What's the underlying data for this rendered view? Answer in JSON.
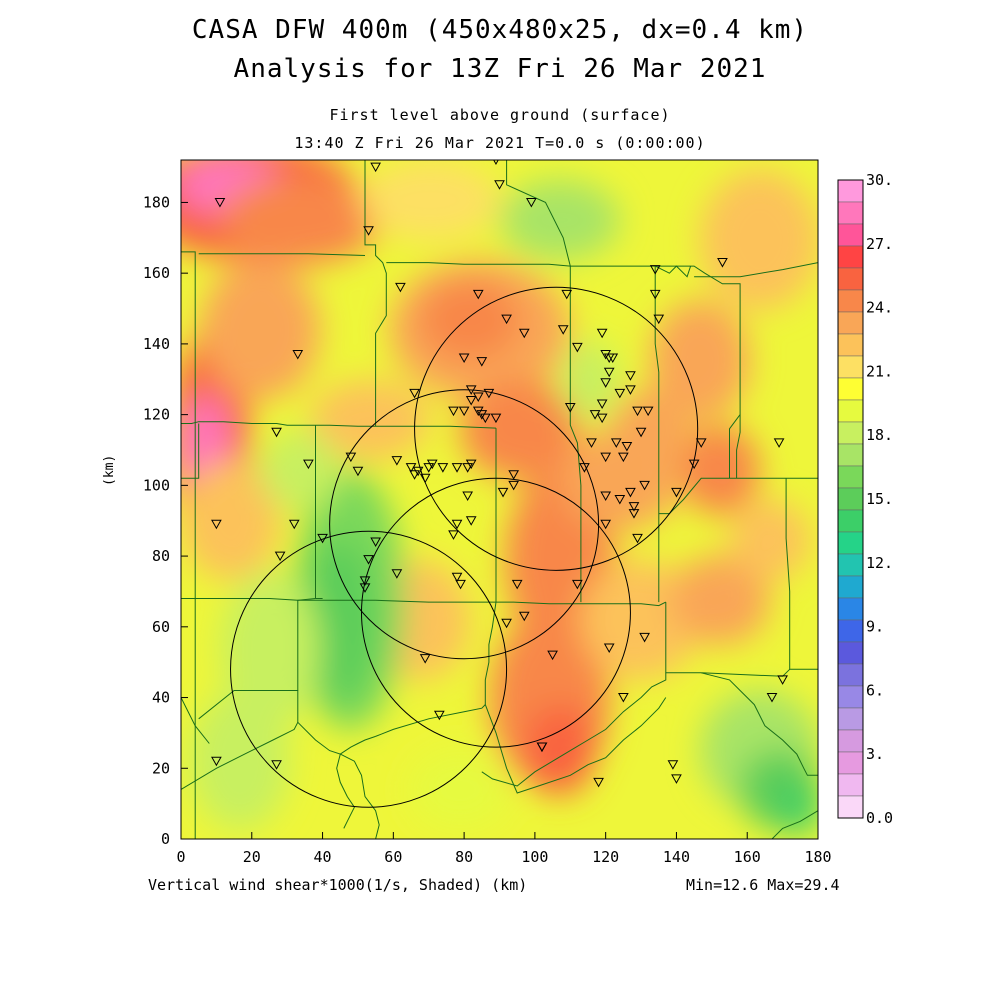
{
  "titles": {
    "line1": "CASA DFW 400m (450x480x25, dx=0.4 km)",
    "line2": "Analysis for 13Z Fri 26 Mar 2021",
    "level": "First level above ground (surface)",
    "time": "13:40 Z Fri 26 Mar 2021    T=0.0 s (0:00:00)"
  },
  "footer": {
    "variable": "Vertical wind shear*1000(1/s, Shaded)  (km)",
    "range": "Min=12.6 Max=29.4"
  },
  "axes": {
    "ylabel": "(km)",
    "x_ticks": [
      "0",
      "20",
      "40",
      "60",
      "80",
      "100",
      "120",
      "140",
      "160",
      "180"
    ],
    "y_ticks": [
      "0",
      "20",
      "40",
      "60",
      "80",
      "100",
      "120",
      "140",
      "160",
      "180"
    ],
    "x_range": [
      0,
      180
    ],
    "y_range": [
      0,
      192
    ]
  },
  "colorbar": {
    "labels": [
      "30.",
      "27.",
      "24.",
      "21.",
      "18.",
      "15.",
      "12.",
      "9.",
      "6.",
      "3.",
      "0.0"
    ],
    "colors_top_to_bottom": [
      "#ff99dd",
      "#ff77bb",
      "#ff5599",
      "#ff4444",
      "#f96340",
      "#f8874a",
      "#f9a657",
      "#fcc25a",
      "#fde063",
      "#fefe33",
      "#e6fa3f",
      "#c8f060",
      "#a8e466",
      "#7ad85a",
      "#5ccd5a",
      "#3ccf68",
      "#25d388",
      "#22c4b0",
      "#1fa9d0",
      "#2a86e6",
      "#3e66e8",
      "#5b59dd",
      "#7b72de",
      "#9888e6",
      "#b99ae4",
      "#d69ae0",
      "#e69ae0",
      "#f0b8f0",
      "#fad8f8"
    ]
  },
  "legend_colors": {
    "boundary": "#1a6e1a",
    "circle": "#000000",
    "marker": "#000000"
  },
  "map": {
    "radar_circles": [
      {
        "cx": 106,
        "cy": 116,
        "r": 40
      },
      {
        "cx": 80,
        "cy": 89,
        "r": 38
      },
      {
        "cx": 89,
        "cy": 64,
        "r": 38
      },
      {
        "cx": 53,
        "cy": 48,
        "r": 39
      }
    ],
    "stations_km": [
      [
        55,
        190
      ],
      [
        89,
        192
      ],
      [
        90,
        185
      ],
      [
        99,
        180
      ],
      [
        11,
        180
      ],
      [
        53,
        172
      ],
      [
        62,
        156
      ],
      [
        84,
        154
      ],
      [
        109,
        154
      ],
      [
        134,
        161
      ],
      [
        153,
        163
      ],
      [
        134,
        154
      ],
      [
        135,
        147
      ],
      [
        92,
        147
      ],
      [
        97,
        143
      ],
      [
        108,
        144
      ],
      [
        112,
        139
      ],
      [
        119,
        143
      ],
      [
        120,
        137
      ],
      [
        121,
        136
      ],
      [
        122,
        136
      ],
      [
        121,
        132
      ],
      [
        120,
        129
      ],
      [
        127,
        131
      ],
      [
        127,
        127
      ],
      [
        124,
        126
      ],
      [
        33,
        137
      ],
      [
        80,
        136
      ],
      [
        85,
        135
      ],
      [
        82,
        127
      ],
      [
        84,
        125
      ],
      [
        82,
        124
      ],
      [
        87,
        126
      ],
      [
        66,
        126
      ],
      [
        77,
        121
      ],
      [
        80,
        121
      ],
      [
        84,
        121
      ],
      [
        86,
        119
      ],
      [
        85,
        120
      ],
      [
        89,
        119
      ],
      [
        110,
        122
      ],
      [
        117,
        120
      ],
      [
        119,
        119
      ],
      [
        119,
        123
      ],
      [
        129,
        121
      ],
      [
        132,
        121
      ],
      [
        123,
        112
      ],
      [
        130,
        115
      ],
      [
        116,
        112
      ],
      [
        126,
        111
      ],
      [
        120,
        108
      ],
      [
        125,
        108
      ],
      [
        147,
        112
      ],
      [
        169,
        112
      ],
      [
        27,
        115
      ],
      [
        36,
        106
      ],
      [
        48,
        108
      ],
      [
        50,
        104
      ],
      [
        61,
        107
      ],
      [
        65,
        105
      ],
      [
        67,
        104
      ],
      [
        70,
        105
      ],
      [
        71,
        106
      ],
      [
        69,
        102
      ],
      [
        66,
        103
      ],
      [
        74,
        105
      ],
      [
        78,
        105
      ],
      [
        81,
        105
      ],
      [
        82,
        106
      ],
      [
        94,
        103
      ],
      [
        94,
        100
      ],
      [
        91,
        98
      ],
      [
        81,
        97
      ],
      [
        114,
        105
      ],
      [
        120,
        97
      ],
      [
        124,
        96
      ],
      [
        127,
        98
      ],
      [
        128,
        94
      ],
      [
        128,
        92
      ],
      [
        131,
        100
      ],
      [
        140,
        98
      ],
      [
        145,
        106
      ],
      [
        10,
        89
      ],
      [
        32,
        89
      ],
      [
        28,
        80
      ],
      [
        40,
        85
      ],
      [
        55,
        84
      ],
      [
        53,
        79
      ],
      [
        78,
        89
      ],
      [
        77,
        86
      ],
      [
        82,
        90
      ],
      [
        120,
        89
      ],
      [
        129,
        85
      ],
      [
        61,
        75
      ],
      [
        78,
        74
      ],
      [
        79,
        72
      ],
      [
        52,
        73
      ],
      [
        52,
        71
      ],
      [
        95,
        72
      ],
      [
        112,
        72
      ],
      [
        97,
        63
      ],
      [
        92,
        61
      ],
      [
        131,
        57
      ],
      [
        121,
        54
      ],
      [
        105,
        52
      ],
      [
        69,
        51
      ],
      [
        125,
        40
      ],
      [
        73,
        35
      ],
      [
        170,
        45
      ],
      [
        167,
        40
      ],
      [
        102,
        26
      ],
      [
        102,
        26
      ],
      [
        10,
        22
      ],
      [
        27,
        21
      ],
      [
        139,
        21
      ],
      [
        140,
        17
      ],
      [
        118,
        16
      ]
    ],
    "boundaries_km": [
      [
        [
          0,
          117.5
        ],
        [
          3,
          117.5
        ],
        [
          5,
          118
        ],
        [
          8,
          118
        ],
        [
          12,
          118
        ],
        [
          20,
          117.5
        ],
        [
          27,
          117.5
        ],
        [
          30,
          117
        ],
        [
          38,
          117
        ],
        [
          42,
          117
        ],
        [
          50,
          116.7
        ],
        [
          62,
          116.7
        ],
        [
          70,
          116.7
        ],
        [
          76,
          116.7
        ],
        [
          89,
          116.2
        ]
      ],
      [
        [
          4,
          0
        ],
        [
          4,
          166
        ],
        [
          0,
          166
        ]
      ],
      [
        [
          5,
          165.5
        ],
        [
          12,
          165.5
        ],
        [
          22,
          165.5
        ],
        [
          30,
          165.5
        ],
        [
          36,
          165.5
        ],
        [
          52,
          165
        ]
      ],
      [
        [
          0,
          68
        ],
        [
          15,
          68
        ],
        [
          25,
          68
        ],
        [
          33,
          67.5
        ],
        [
          42,
          67.5
        ],
        [
          55,
          67.5
        ],
        [
          70,
          67
        ],
        [
          80,
          67
        ],
        [
          94,
          67
        ],
        [
          104,
          66.5
        ],
        [
          122,
          66.5
        ],
        [
          130,
          66.5
        ],
        [
          135,
          66
        ],
        [
          137,
          67
        ]
      ],
      [
        [
          92,
          192
        ],
        [
          92,
          185
        ],
        [
          103,
          180
        ],
        [
          108,
          170
        ],
        [
          110,
          162
        ],
        [
          110,
          150
        ],
        [
          110,
          140
        ],
        [
          110,
          130
        ],
        [
          110,
          117
        ],
        [
          112,
          112
        ],
        [
          113,
          100
        ],
        [
          113,
          90
        ],
        [
          113,
          80
        ],
        [
          113,
          67
        ]
      ],
      [
        [
          52,
          192
        ],
        [
          52,
          180
        ],
        [
          52,
          168
        ],
        [
          55,
          168
        ],
        [
          55,
          165
        ],
        [
          57,
          163
        ],
        [
          58,
          160
        ],
        [
          58,
          148
        ],
        [
          55,
          143
        ],
        [
          55,
          136
        ],
        [
          55,
          130
        ],
        [
          55,
          123
        ],
        [
          55,
          116.7
        ]
      ],
      [
        [
          58,
          163
        ],
        [
          70,
          163
        ],
        [
          80,
          162.5
        ],
        [
          90,
          162.5
        ],
        [
          104,
          162.5
        ],
        [
          110,
          162
        ]
      ],
      [
        [
          110,
          162
        ],
        [
          120,
          162
        ],
        [
          136,
          162
        ],
        [
          145,
          162
        ],
        [
          148,
          160
        ],
        [
          153,
          157
        ],
        [
          156,
          157
        ],
        [
          158,
          157
        ],
        [
          158,
          145
        ],
        [
          158,
          130
        ],
        [
          158,
          120
        ],
        [
          155,
          116
        ],
        [
          155,
          102
        ]
      ],
      [
        [
          145,
          159
        ],
        [
          158,
          159
        ],
        [
          170,
          161
        ],
        [
          180,
          163
        ]
      ],
      [
        [
          158,
          120
        ],
        [
          158,
          115
        ],
        [
          157,
          110
        ],
        [
          157,
          102
        ]
      ],
      [
        [
          155,
          102
        ],
        [
          158,
          102
        ],
        [
          170,
          102
        ],
        [
          180,
          102
        ]
      ],
      [
        [
          171,
          102
        ],
        [
          171,
          85
        ],
        [
          172,
          70
        ],
        [
          172,
          48
        ],
        [
          175,
          48
        ],
        [
          180,
          48
        ]
      ],
      [
        [
          134,
          162
        ],
        [
          134,
          140
        ],
        [
          135,
          132
        ],
        [
          135,
          117
        ],
        [
          135,
          100
        ],
        [
          135,
          92
        ],
        [
          135,
          80
        ],
        [
          135,
          67
        ]
      ],
      [
        [
          155,
          102
        ],
        [
          147,
          102
        ],
        [
          142,
          96
        ],
        [
          138,
          92
        ],
        [
          135,
          92
        ]
      ],
      [
        [
          134,
          162
        ],
        [
          138,
          160
        ],
        [
          140,
          162
        ],
        [
          143,
          159
        ],
        [
          144,
          162
        ]
      ],
      [
        [
          147,
          47
        ],
        [
          170,
          46
        ],
        [
          172,
          48
        ]
      ],
      [
        [
          137,
          67
        ],
        [
          137,
          56
        ],
        [
          137,
          50
        ],
        [
          137,
          47
        ],
        [
          142,
          47
        ],
        [
          147,
          47
        ]
      ],
      [
        [
          137,
          47
        ],
        [
          137,
          45
        ],
        [
          133,
          43
        ],
        [
          130,
          40
        ],
        [
          125,
          36
        ],
        [
          120,
          31
        ],
        [
          115,
          28
        ],
        [
          110,
          25
        ],
        [
          105,
          22
        ],
        [
          100,
          19
        ],
        [
          95,
          15
        ],
        [
          88,
          17
        ],
        [
          85,
          19
        ]
      ],
      [
        [
          147,
          47
        ],
        [
          155,
          45
        ],
        [
          158,
          42
        ],
        [
          162,
          38
        ],
        [
          165,
          32
        ],
        [
          170,
          28
        ],
        [
          174,
          24
        ],
        [
          176,
          20
        ],
        [
          177,
          18
        ],
        [
          180,
          18
        ]
      ],
      [
        [
          38,
          117
        ],
        [
          38,
          100
        ],
        [
          38,
          92
        ],
        [
          38,
          80
        ],
        [
          38,
          68
        ],
        [
          40,
          68
        ]
      ],
      [
        [
          38,
          68
        ],
        [
          33,
          67.5
        ],
        [
          33,
          56
        ],
        [
          33,
          48
        ],
        [
          33,
          42
        ],
        [
          30,
          42
        ],
        [
          15,
          42
        ],
        [
          5,
          34
        ]
      ],
      [
        [
          0,
          40
        ],
        [
          4,
          32
        ],
        [
          8,
          27
        ]
      ],
      [
        [
          33,
          42
        ],
        [
          33,
          33
        ],
        [
          38,
          28
        ],
        [
          42,
          25
        ],
        [
          45,
          24
        ],
        [
          48,
          26
        ],
        [
          50,
          27
        ],
        [
          52,
          28
        ],
        [
          55,
          29
        ]
      ],
      [
        [
          0,
          14
        ],
        [
          10,
          20
        ],
        [
          18,
          24
        ],
        [
          26,
          28
        ],
        [
          32,
          31
        ],
        [
          33,
          33
        ]
      ],
      [
        [
          55,
          29
        ],
        [
          60,
          31
        ],
        [
          70,
          34
        ],
        [
          80,
          36
        ],
        [
          85,
          37
        ],
        [
          86,
          38
        ]
      ],
      [
        [
          86,
          38
        ],
        [
          89,
          30
        ],
        [
          92,
          20
        ],
        [
          95,
          13
        ],
        [
          101,
          15
        ],
        [
          110,
          18
        ],
        [
          115,
          21
        ],
        [
          120,
          23
        ],
        [
          125,
          28
        ],
        [
          130,
          32
        ],
        [
          135,
          37
        ],
        [
          137,
          40
        ]
      ],
      [
        [
          45,
          24
        ],
        [
          44,
          20
        ],
        [
          45,
          16
        ],
        [
          47,
          12
        ],
        [
          49,
          9
        ],
        [
          47,
          5
        ],
        [
          46,
          3
        ]
      ],
      [
        [
          45,
          24
        ],
        [
          49,
          22
        ],
        [
          50,
          20
        ],
        [
          51,
          18
        ],
        [
          52,
          12
        ],
        [
          55,
          8
        ],
        [
          56,
          4
        ],
        [
          55,
          0
        ]
      ],
      [
        [
          89,
          116.2
        ],
        [
          89,
          105
        ],
        [
          89,
          95
        ],
        [
          89,
          85
        ],
        [
          89,
          75
        ],
        [
          89,
          67
        ]
      ],
      [
        [
          89,
          67
        ],
        [
          88,
          60
        ],
        [
          87,
          55
        ],
        [
          87,
          50
        ],
        [
          86,
          45
        ],
        [
          86,
          38
        ]
      ],
      [
        [
          0,
          102
        ],
        [
          5,
          102
        ],
        [
          5,
          117.5
        ]
      ],
      [
        [
          167,
          0
        ],
        [
          170,
          3
        ],
        [
          175,
          5
        ],
        [
          180,
          8
        ]
      ]
    ]
  }
}
